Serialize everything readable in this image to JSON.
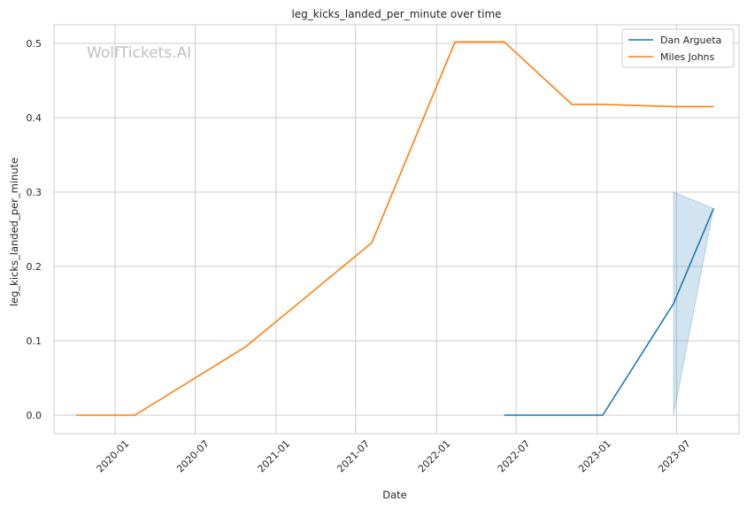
{
  "chart_data": {
    "type": "line",
    "title": "leg_kicks_landed_per_minute over time",
    "xlabel": "Date",
    "ylabel": "leg_kicks_landed_per_minute",
    "watermark": "WolfTickets.AI",
    "xlim": [
      "2019-08-15",
      "2023-11-20"
    ],
    "ylim": [
      -0.025,
      0.525
    ],
    "x_ticks": [
      "2020-01",
      "2020-07",
      "2021-01",
      "2021-07",
      "2022-01",
      "2022-07",
      "2023-01",
      "2023-07"
    ],
    "y_ticks": [
      "0.0",
      "0.1",
      "0.2",
      "0.3",
      "0.4",
      "0.5"
    ],
    "grid": true,
    "legend_position": "top-right",
    "series": [
      {
        "name": "Dan Argueta",
        "color": "#1f77b4",
        "x": [
          "2022-06-04",
          "2023-01-14",
          "2023-06-24",
          "2023-09-23"
        ],
        "y": [
          0.0,
          0.0,
          0.15,
          0.278
        ],
        "band": {
          "x": [
            "2023-06-24",
            "2023-09-23"
          ],
          "lower": [
            0.0,
            0.278
          ],
          "upper": [
            0.3,
            0.278
          ]
        }
      },
      {
        "name": "Miles Johns",
        "color": "#ff7f0e",
        "x": [
          "2019-10-05",
          "2020-02-15",
          "2020-10-24",
          "2021-08-07",
          "2022-02-12",
          "2022-06-04",
          "2022-11-05",
          "2023-01-14",
          "2023-06-24",
          "2023-09-23"
        ],
        "y": [
          0.0,
          0.0,
          0.092,
          0.232,
          0.502,
          0.502,
          0.418,
          0.418,
          0.415,
          0.415
        ]
      }
    ]
  }
}
